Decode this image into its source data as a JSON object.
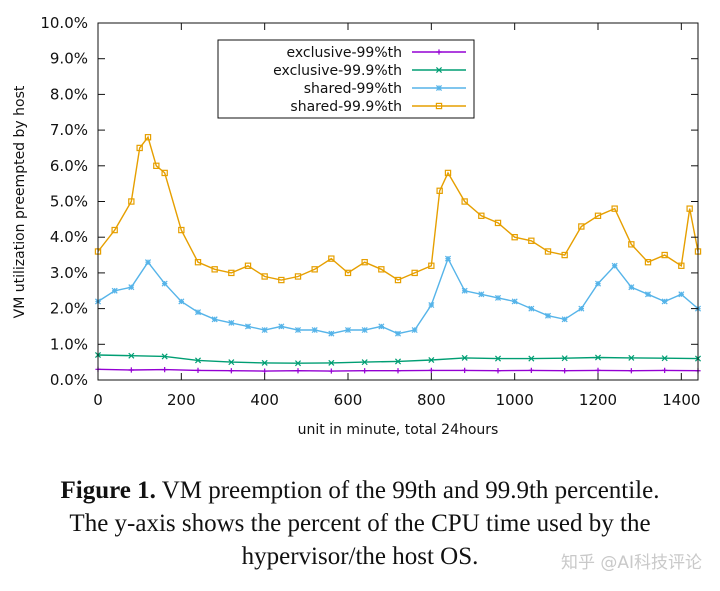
{
  "figure_caption": {
    "label": "Figure 1.",
    "line1": "VM preemption of the 99th and 99.9th percentile.",
    "line2": "The y-axis shows the percent of the CPU time used by the",
    "line3": "hypervisor/the host OS."
  },
  "watermark": "知乎 @AI科技评论",
  "chart_data": {
    "type": "line",
    "title": "",
    "xlabel": "unit in minute, total 24hours",
    "ylabel": "VM utilization preempted by host",
    "xlim": [
      0,
      1440
    ],
    "ylim": [
      0,
      10
    ],
    "xticks": [
      0,
      200,
      400,
      600,
      800,
      1000,
      1200,
      1400
    ],
    "yticks": [
      "0.0%",
      "1.0%",
      "2.0%",
      "3.0%",
      "4.0%",
      "5.0%",
      "6.0%",
      "7.0%",
      "8.0%",
      "9.0%",
      "10.0%"
    ],
    "grid": false,
    "legend_position": "top-center",
    "series": [
      {
        "name": "exclusive-99%th",
        "color": "#9400d3",
        "marker": "plus",
        "x": [
          0,
          80,
          160,
          240,
          320,
          400,
          480,
          560,
          640,
          720,
          800,
          880,
          960,
          1040,
          1120,
          1200,
          1280,
          1360,
          1440
        ],
        "values": [
          0.3,
          0.28,
          0.29,
          0.27,
          0.26,
          0.25,
          0.26,
          0.25,
          0.26,
          0.26,
          0.27,
          0.27,
          0.26,
          0.27,
          0.26,
          0.27,
          0.26,
          0.27,
          0.26
        ]
      },
      {
        "name": "exclusive-99.9%th",
        "color": "#009e73",
        "marker": "x",
        "x": [
          0,
          80,
          160,
          240,
          320,
          400,
          480,
          560,
          640,
          720,
          800,
          880,
          960,
          1040,
          1120,
          1200,
          1280,
          1360,
          1440
        ],
        "values": [
          0.7,
          0.68,
          0.66,
          0.55,
          0.5,
          0.48,
          0.47,
          0.48,
          0.5,
          0.52,
          0.56,
          0.62,
          0.6,
          0.6,
          0.61,
          0.63,
          0.62,
          0.61,
          0.6
        ]
      },
      {
        "name": "shared-99%th",
        "color": "#56b4e9",
        "marker": "star",
        "x": [
          0,
          40,
          80,
          120,
          160,
          200,
          240,
          280,
          320,
          360,
          400,
          440,
          480,
          520,
          560,
          600,
          640,
          680,
          720,
          760,
          800,
          840,
          880,
          920,
          960,
          1000,
          1040,
          1080,
          1120,
          1160,
          1200,
          1240,
          1280,
          1320,
          1360,
          1400,
          1440
        ],
        "values": [
          2.2,
          2.5,
          2.6,
          3.3,
          2.7,
          2.2,
          1.9,
          1.7,
          1.6,
          1.5,
          1.4,
          1.5,
          1.4,
          1.4,
          1.3,
          1.4,
          1.4,
          1.5,
          1.3,
          1.4,
          2.1,
          3.4,
          2.5,
          2.4,
          2.3,
          2.2,
          2.0,
          1.8,
          1.7,
          2.0,
          2.7,
          3.2,
          2.6,
          2.4,
          2.2,
          2.4,
          2.0
        ]
      },
      {
        "name": "shared-99.9%th",
        "color": "#e69f00",
        "marker": "square",
        "x": [
          0,
          40,
          80,
          100,
          120,
          140,
          160,
          200,
          240,
          280,
          320,
          360,
          400,
          440,
          480,
          520,
          560,
          600,
          640,
          680,
          720,
          760,
          800,
          820,
          840,
          880,
          920,
          960,
          1000,
          1040,
          1080,
          1120,
          1160,
          1200,
          1240,
          1280,
          1320,
          1360,
          1400,
          1420,
          1440
        ],
        "values": [
          3.6,
          4.2,
          5.0,
          6.5,
          6.8,
          6.0,
          5.8,
          4.2,
          3.3,
          3.1,
          3.0,
          3.2,
          2.9,
          2.8,
          2.9,
          3.1,
          3.4,
          3.0,
          3.3,
          3.1,
          2.8,
          3.0,
          3.2,
          5.3,
          5.8,
          5.0,
          4.6,
          4.4,
          4.0,
          3.9,
          3.6,
          3.5,
          4.3,
          4.6,
          4.8,
          3.8,
          3.3,
          3.5,
          3.2,
          4.8,
          3.6
        ]
      }
    ]
  }
}
